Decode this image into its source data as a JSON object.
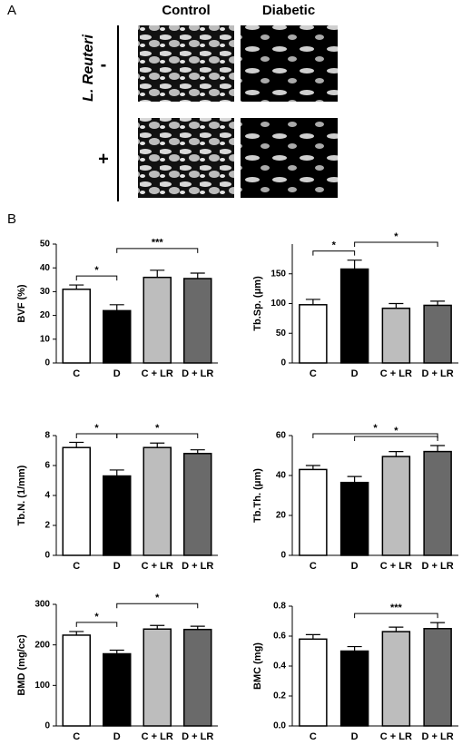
{
  "panel_a": {
    "label": "A",
    "columns": [
      "Control",
      "Diabetic"
    ],
    "row_title": "L. Reuteri",
    "rows": [
      "-",
      "+"
    ]
  },
  "panel_b": {
    "label": "B"
  },
  "chart_data": [
    {
      "type": "bar",
      "ylabel": "BVF (%)",
      "categories": [
        "C",
        "D",
        "C + LR",
        "D + LR"
      ],
      "values": [
        31,
        22,
        36,
        35.5
      ],
      "errors": [
        1.8,
        2.5,
        3,
        2.3
      ],
      "colors": [
        "#ffffff",
        "#000000",
        "#bdbdbd",
        "#6a6a6a"
      ],
      "ylim": [
        0,
        50
      ],
      "yticks": [
        0,
        10,
        20,
        30,
        40,
        50
      ],
      "annotations": [
        {
          "from": 0,
          "to": 1,
          "label": "*"
        },
        {
          "from": 1,
          "to": 3,
          "label": "***"
        }
      ]
    },
    {
      "type": "bar",
      "ylabel": "Tb.Sp. (μm)",
      "categories": [
        "C",
        "D",
        "C + LR",
        "D + LR"
      ],
      "values": [
        98,
        158,
        92,
        97
      ],
      "errors": [
        9,
        15,
        8,
        7
      ],
      "colors": [
        "#ffffff",
        "#000000",
        "#bdbdbd",
        "#6a6a6a"
      ],
      "ylim": [
        0,
        200
      ],
      "yticks": [
        0,
        50,
        100,
        150
      ],
      "annotations": [
        {
          "from": 0,
          "to": 1,
          "label": "*"
        },
        {
          "from": 1,
          "to": 3,
          "label": "*"
        }
      ]
    },
    {
      "type": "bar",
      "ylabel": "Tb.N. (1/mm)",
      "categories": [
        "C",
        "D",
        "C + LR",
        "D + LR"
      ],
      "values": [
        7.2,
        5.3,
        7.2,
        6.8
      ],
      "errors": [
        0.35,
        0.4,
        0.3,
        0.25
      ],
      "colors": [
        "#ffffff",
        "#000000",
        "#bdbdbd",
        "#6a6a6a"
      ],
      "ylim": [
        0,
        8
      ],
      "yticks": [
        0,
        2,
        4,
        6,
        8
      ],
      "annotations": [
        {
          "from": 0,
          "to": 1,
          "label": "*"
        },
        {
          "from": 1,
          "to": 3,
          "label": "*"
        }
      ]
    },
    {
      "type": "bar",
      "ylabel": "Tb.Th. (μm)",
      "categories": [
        "C",
        "D",
        "C + LR",
        "D + LR"
      ],
      "values": [
        43,
        36.5,
        49.5,
        52
      ],
      "errors": [
        2,
        3,
        2.5,
        3
      ],
      "colors": [
        "#ffffff",
        "#000000",
        "#bdbdbd",
        "#6a6a6a"
      ],
      "ylim": [
        0,
        60
      ],
      "yticks": [
        0,
        20,
        40,
        60
      ],
      "annotations": [
        {
          "from": 1,
          "to": 3,
          "label": "*"
        },
        {
          "from": 0,
          "to": 3,
          "label": "*"
        }
      ]
    },
    {
      "type": "bar",
      "ylabel": "BMD (mg/cc)",
      "categories": [
        "C",
        "D",
        "C + LR",
        "D + LR"
      ],
      "values": [
        224,
        178,
        239,
        238
      ],
      "errors": [
        9,
        9,
        9,
        8
      ],
      "colors": [
        "#ffffff",
        "#000000",
        "#bdbdbd",
        "#6a6a6a"
      ],
      "ylim": [
        0,
        300
      ],
      "yticks": [
        0,
        100,
        200,
        300
      ],
      "annotations": [
        {
          "from": 0,
          "to": 1,
          "label": "*"
        },
        {
          "from": 1,
          "to": 3,
          "label": "*"
        }
      ]
    },
    {
      "type": "bar",
      "ylabel": "BMC (mg)",
      "categories": [
        "C",
        "D",
        "C + LR",
        "D + LR"
      ],
      "values": [
        0.58,
        0.5,
        0.63,
        0.65
      ],
      "errors": [
        0.03,
        0.03,
        0.03,
        0.04
      ],
      "colors": [
        "#ffffff",
        "#000000",
        "#bdbdbd",
        "#6a6a6a"
      ],
      "ylim": [
        0,
        0.8
      ],
      "yticks": [
        {
          "value": 0,
          "label": "0.0"
        },
        0.2,
        0.4,
        0.6,
        0.8
      ],
      "annotations": [
        {
          "from": 1,
          "to": 3,
          "label": "***"
        }
      ]
    }
  ]
}
